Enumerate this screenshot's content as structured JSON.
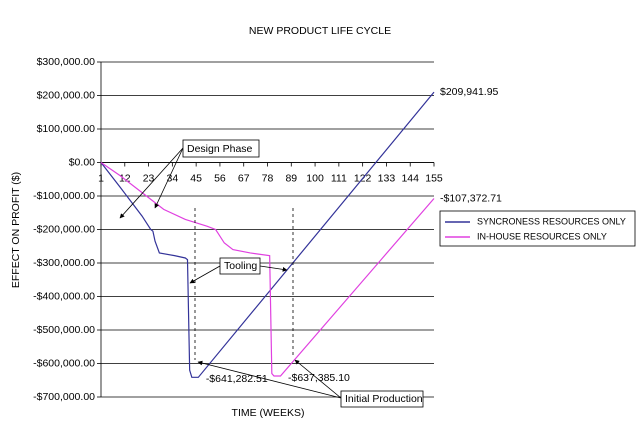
{
  "chart_data": {
    "type": "line",
    "title": "NEW PRODUCT  LIFE CYCLE",
    "x_label": "TIME (WEEKS)",
    "y_label": "EFFECT ON PROFIT ($)",
    "xlim": [
      1,
      155
    ],
    "xticks": [
      1,
      12,
      23,
      34,
      45,
      56,
      67,
      78,
      89,
      100,
      111,
      122,
      133,
      144,
      155
    ],
    "ylim": [
      -700000,
      300000
    ],
    "yticks": [
      {
        "value": 300000,
        "label": "$300,000.00"
      },
      {
        "value": 200000,
        "label": "$200,000.00"
      },
      {
        "value": 100000,
        "label": "$100,000.00"
      },
      {
        "value": 0,
        "label": "$0.00"
      },
      {
        "value": -100000,
        "label": "-$100,000.00"
      },
      {
        "value": -200000,
        "label": "-$200,000.00"
      },
      {
        "value": -300000,
        "label": "-$300,000.00"
      },
      {
        "value": -400000,
        "label": "-$400,000.00"
      },
      {
        "value": -500000,
        "label": "-$500,000.00"
      },
      {
        "value": -600000,
        "label": "-$600,000.00"
      },
      {
        "value": -700000,
        "label": "-$700,000.00"
      }
    ],
    "grid": true,
    "legend": "right",
    "series": [
      {
        "name": "SYNCRONESS RESOURCES ONLY",
        "color": "#333399",
        "x": [
          1,
          10,
          20,
          24,
          25,
          26,
          28,
          35,
          40,
          41,
          42,
          43,
          46,
          155
        ],
        "values": [
          0,
          -75000,
          -160000,
          -200000,
          -205000,
          -235000,
          -270000,
          -278000,
          -285000,
          -290000,
          -620000,
          -641282.51,
          -641282.51,
          209941.95
        ],
        "value_labels": [
          null,
          null,
          null,
          null,
          null,
          null,
          null,
          null,
          null,
          null,
          null,
          "-$641,282.51",
          null,
          "$209,941.95"
        ]
      },
      {
        "name": "IN-HOUSE RESOURCES ONLY",
        "color": "#e040e0",
        "x": [
          1,
          10,
          20,
          30,
          40,
          50,
          54,
          55,
          58,
          62,
          70,
          79,
          80,
          81,
          84,
          155
        ],
        "values": [
          0,
          -40000,
          -90000,
          -140000,
          -170000,
          -190000,
          -200000,
          -210000,
          -240000,
          -260000,
          -270000,
          -278000,
          -630000,
          -637385.1,
          -637385.1,
          -107372.71
        ],
        "value_labels": [
          null,
          null,
          null,
          null,
          null,
          null,
          null,
          null,
          null,
          null,
          null,
          null,
          null,
          "-$637,385.10",
          null,
          "-$107,372.71"
        ]
      }
    ],
    "annotations": [
      "Design Phase",
      "Tooling",
      "Initial Production"
    ]
  }
}
